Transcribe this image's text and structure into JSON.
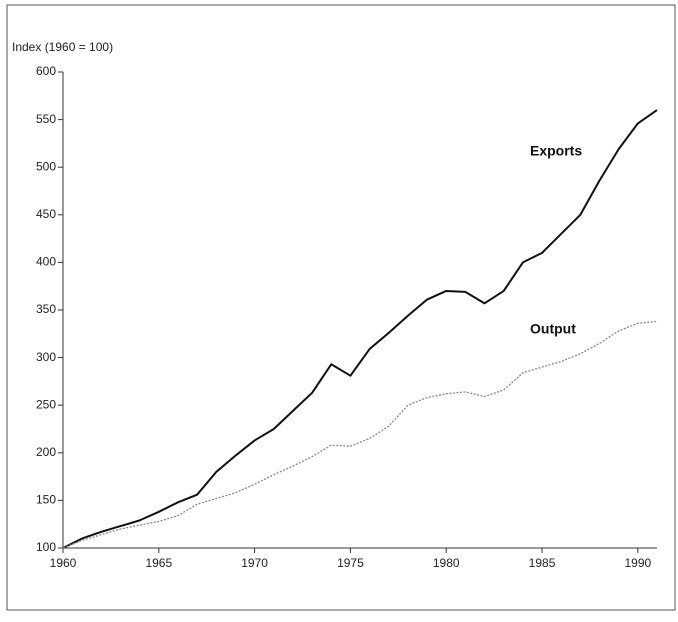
{
  "chart_data": {
    "type": "line",
    "y_label": "Index (1960 = 100)",
    "x": [
      1960,
      1961,
      1962,
      1963,
      1964,
      1965,
      1966,
      1967,
      1968,
      1969,
      1970,
      1971,
      1972,
      1973,
      1974,
      1975,
      1976,
      1977,
      1978,
      1979,
      1980,
      1981,
      1982,
      1983,
      1984,
      1985,
      1986,
      1987,
      1988,
      1989,
      1990,
      1991
    ],
    "series": [
      {
        "name": "Exports",
        "color": "#111111",
        "values": [
          100,
          110,
          117,
          123,
          129,
          138,
          148,
          156,
          180,
          197,
          213,
          225,
          244,
          263,
          293,
          281,
          309,
          326,
          344,
          361,
          370,
          369,
          357,
          370,
          400,
          410,
          430,
          450,
          486,
          519,
          546,
          560
        ]
      },
      {
        "name": "Output",
        "color": "#888888",
        "values": [
          100,
          108,
          114,
          120,
          124,
          128,
          134,
          146,
          152,
          158,
          167,
          177,
          186,
          196,
          208,
          207,
          215,
          228,
          250,
          258,
          262,
          264,
          259,
          266,
          284,
          290,
          296,
          304,
          315,
          328,
          336,
          338
        ]
      }
    ],
    "xlim": [
      1960,
      1991
    ],
    "xticks": [
      1960,
      1965,
      1970,
      1975,
      1980,
      1985,
      1990
    ],
    "ylim": [
      100,
      600
    ],
    "yticks": [
      100,
      150,
      200,
      250,
      300,
      350,
      400,
      450,
      500,
      550,
      600
    ]
  }
}
